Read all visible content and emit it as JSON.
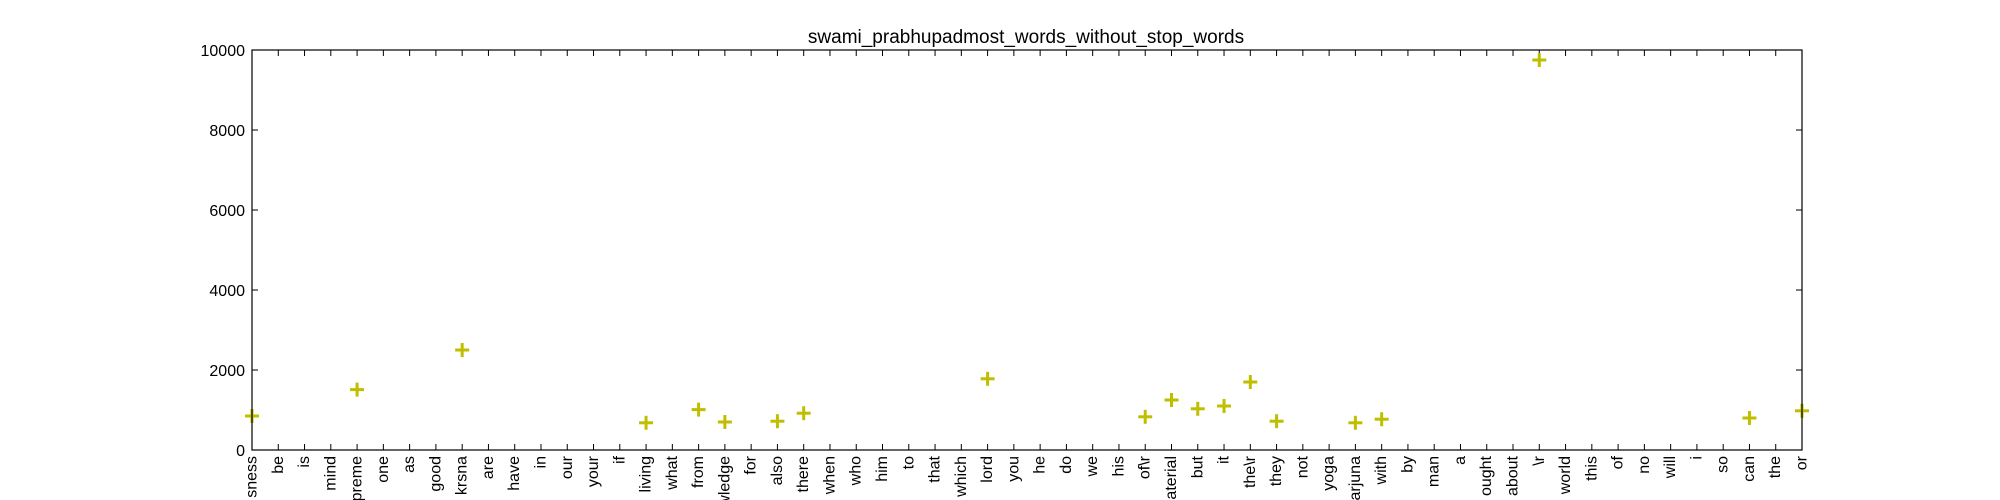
{
  "chart_data": {
    "type": "scatter",
    "title": "swami_prabhupadmost_words_without_stop_words",
    "xlabel": "",
    "ylabel": "",
    "ylim": [
      0,
      10000
    ],
    "yticks": [
      0,
      2000,
      4000,
      6000,
      8000,
      10000
    ],
    "grid": false,
    "marker": "+",
    "color": "#bfbf00",
    "categories": [
      "sness",
      "be",
      "is",
      "mind",
      "preme",
      "one",
      "as",
      "good",
      "krsna",
      "are",
      "have",
      "in",
      "our",
      "your",
      "if",
      "living",
      "what",
      "from",
      "wledge",
      "for",
      "also",
      "there",
      "when",
      "who",
      "him",
      "to",
      "that",
      "which",
      "lord",
      "you",
      "he",
      "do",
      "we",
      "his",
      "of\\r",
      "aterial",
      "but",
      "it",
      "the\\r",
      "they",
      "not",
      "yoga",
      "arjuna",
      "with",
      "by",
      "man",
      "a",
      "ought",
      "about",
      "\\r",
      "world",
      "this",
      "of",
      "no",
      "will",
      "i",
      "so",
      "can",
      "the",
      "or"
    ],
    "points": [
      {
        "x": "sness",
        "y": 850
      },
      {
        "x": "preme",
        "y": 1510
      },
      {
        "x": "krsna",
        "y": 2500
      },
      {
        "x": "living",
        "y": 680
      },
      {
        "x": "from",
        "y": 1010
      },
      {
        "x": "wledge",
        "y": 700
      },
      {
        "x": "also",
        "y": 720
      },
      {
        "x": "there",
        "y": 920
      },
      {
        "x": "lord",
        "y": 1780
      },
      {
        "x": "of\\r",
        "y": 830
      },
      {
        "x": "aterial",
        "y": 1250
      },
      {
        "x": "but",
        "y": 1030
      },
      {
        "x": "it",
        "y": 1100
      },
      {
        "x": "the\\r",
        "y": 1700
      },
      {
        "x": "they",
        "y": 720
      },
      {
        "x": "arjuna",
        "y": 680
      },
      {
        "x": "with",
        "y": 770
      },
      {
        "x": "\\r",
        "y": 9750
      },
      {
        "x": "can",
        "y": 800
      },
      {
        "x": "or",
        "y": 980
      }
    ]
  }
}
